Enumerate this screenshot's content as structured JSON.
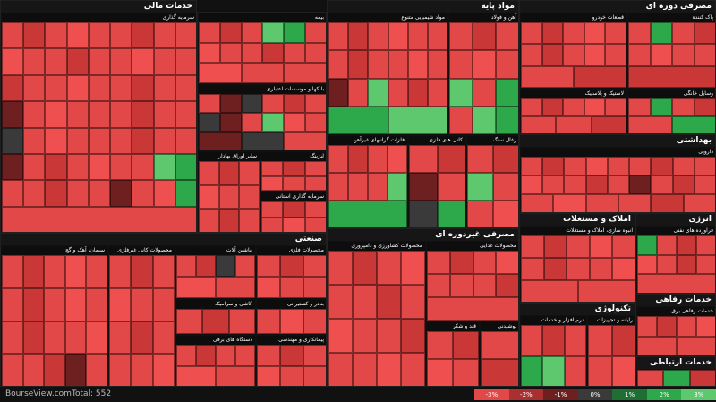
{
  "sectors": {
    "financial": "خدمات مالی",
    "basic_materials": "مواد پایه",
    "consumer_cyclical": "مصرفی دوره ای",
    "healthcare": "بهداشتی",
    "industrial": "صنعتی",
    "consumer_noncyclical": "مصرفی غیردوره ای",
    "real_estate": "املاک و مستغلات",
    "energy": "انرژی",
    "welfare_services": "خدمات رفاهی",
    "technology": "تکنولوژی",
    "communication": "خدمات ارتباطی"
  },
  "subsectors": {
    "investment": "سرمایه گذاری",
    "insurance": "بیمه",
    "banks": "بانکها و موسسات اعتباری",
    "securities": "سایر اوراق بهادار",
    "leasing": "لیزینگ",
    "holding": "سرمایه گذاری استانی",
    "chemicals": "مواد شیمیایی متنوع",
    "steel": "آهن و فولاد",
    "base_metals": "فلزات گرانبهای غیرآهن",
    "mining": "کانی های فلزی",
    "coal": "زغال سنگ",
    "auto_parts": "قطعات خودرو",
    "textile": "پاک کننده",
    "plastic": "لاستیک و پلاستیک",
    "home_appliance": "وسایل خانگی",
    "pharma": "دارویی",
    "cement": "سیمان، آهک و گچ",
    "nonmetal": "محصولات کانی غیرفلزی",
    "machinery": "ماشین آلات",
    "metal_products": "محصولات فلزی",
    "tile": "کاشی و سرامیک",
    "electrical": "دستگاه های برقی",
    "engineering": "پیمانکاری و مهندسی",
    "port": "بنادر و کشتیرانی",
    "agriculture": "محصولات کشاورزی و دامپروری",
    "food": "محصولات غذایی",
    "sugar": "قند و شکر",
    "dairy": "محصولات لبنی",
    "beverage": "نوشیدنی",
    "mass_housing": "انبوه سازی، املاک و مستغلات",
    "oil": "فراورده های نفتی",
    "restaurant": "خدمات رفاهی برق",
    "software": "نرم افزار و خدمات",
    "hardware": "رایانه و تجهیزات",
    "telecom": "مخابرات"
  },
  "footer": {
    "source": "BourseView.com",
    "total": "Total: 552"
  },
  "legend": [
    "-3%",
    "-2%",
    "-1%",
    "0%",
    "1%",
    "2%",
    "3%"
  ],
  "colors": {
    "strong_negative": "#e34848",
    "dark_negative": "#6e2020",
    "neutral": "#3a3a3a",
    "positive": "#2da84a",
    "light_positive": "#5ec86f"
  }
}
